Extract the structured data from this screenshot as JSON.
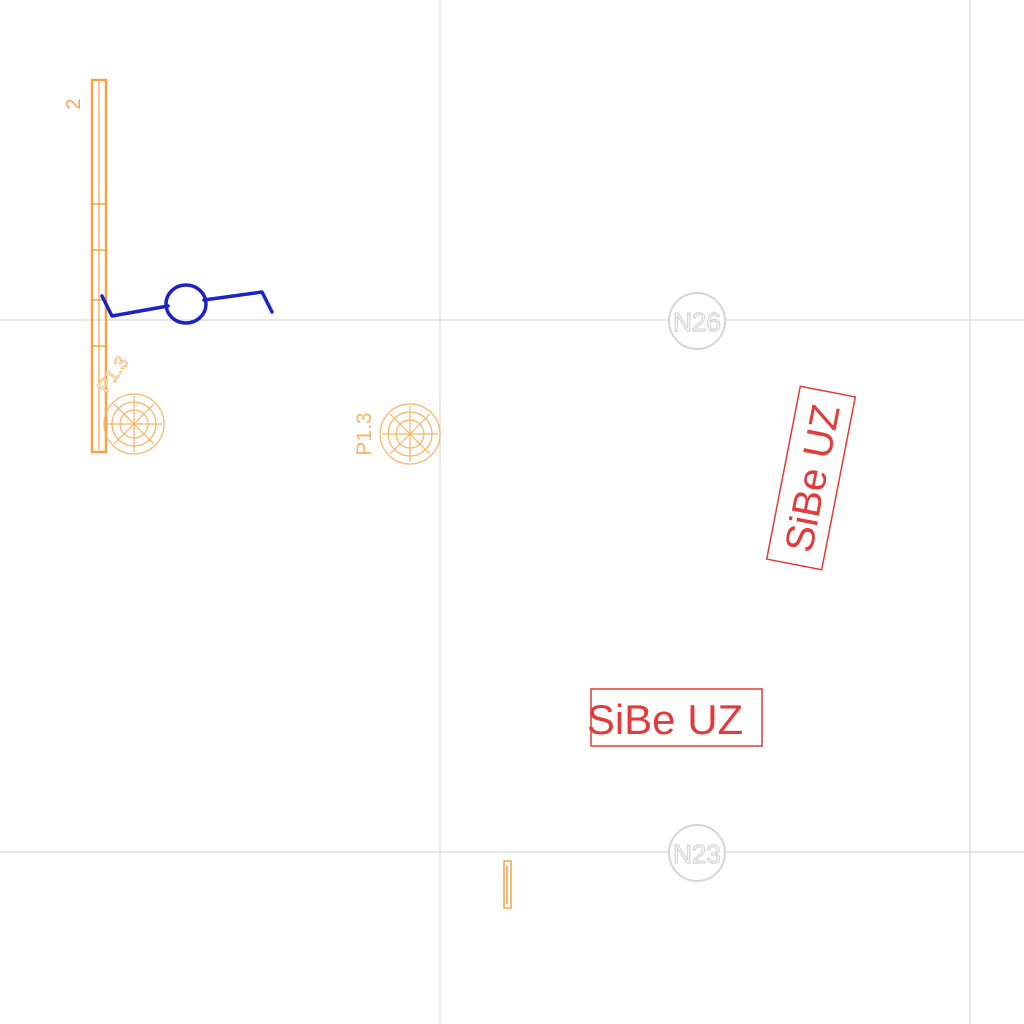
{
  "drawing": {
    "colors": {
      "grid": "#d9d9d9",
      "grid_bubble": "#d5d5d5",
      "orange": "#f5a347",
      "orange_light": "#f7b565",
      "blue": "#1c22c4",
      "red": "#e23b3b"
    },
    "grid_bubbles": [
      {
        "label": "N26"
      },
      {
        "label": "N23"
      }
    ],
    "wall_label": "2",
    "pile_labels": [
      "P1.3",
      "P1.3"
    ],
    "annotations": [
      {
        "text": "SiBe UZ",
        "orientation": "rotated"
      },
      {
        "text": "SiBe UZ",
        "orientation": "horizontal"
      }
    ]
  }
}
